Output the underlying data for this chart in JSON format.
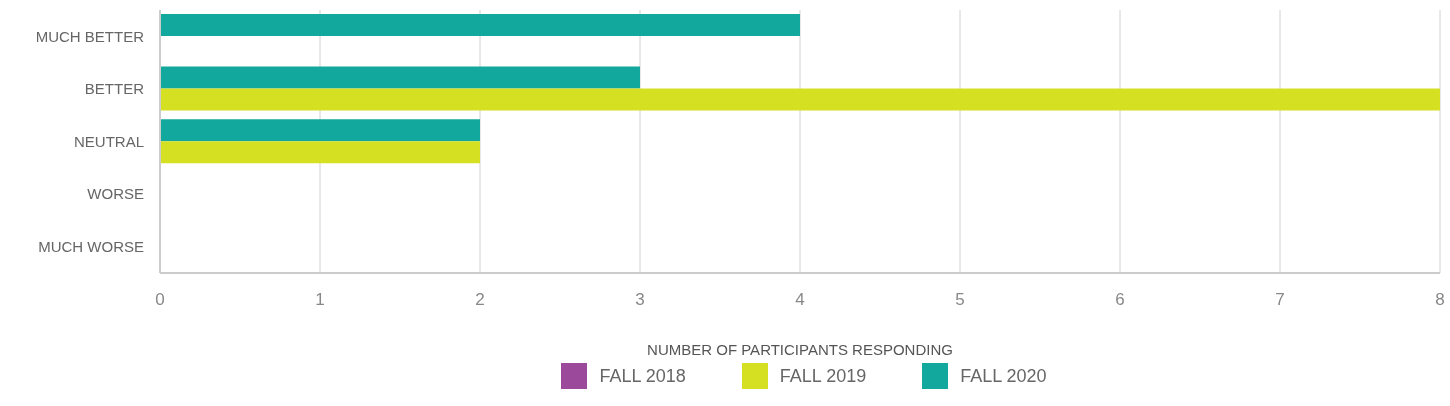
{
  "chart_data": {
    "type": "bar",
    "orientation": "horizontal",
    "xlabel": "NUMBER OF PARTICIPANTS RESPONDING",
    "categories": [
      "MUCH BETTER",
      "BETTER",
      "NEUTRAL",
      "WORSE",
      "MUCH WORSE"
    ],
    "series": [
      {
        "name": "FALL 2018",
        "color": "#9b4a9b",
        "values": [
          null,
          null,
          null,
          null,
          null
        ]
      },
      {
        "name": "FALL 2019",
        "color": "#d5e022",
        "values": [
          null,
          8,
          2,
          null,
          null
        ]
      },
      {
        "name": "FALL 2020",
        "color": "#13a89e",
        "values": [
          4,
          3,
          2,
          null,
          null
        ]
      }
    ],
    "xlim": [
      0,
      8
    ],
    "xticks": [
      0,
      1,
      2,
      3,
      4,
      5,
      6,
      7,
      8
    ],
    "grid": "x",
    "legend": "bottom"
  }
}
